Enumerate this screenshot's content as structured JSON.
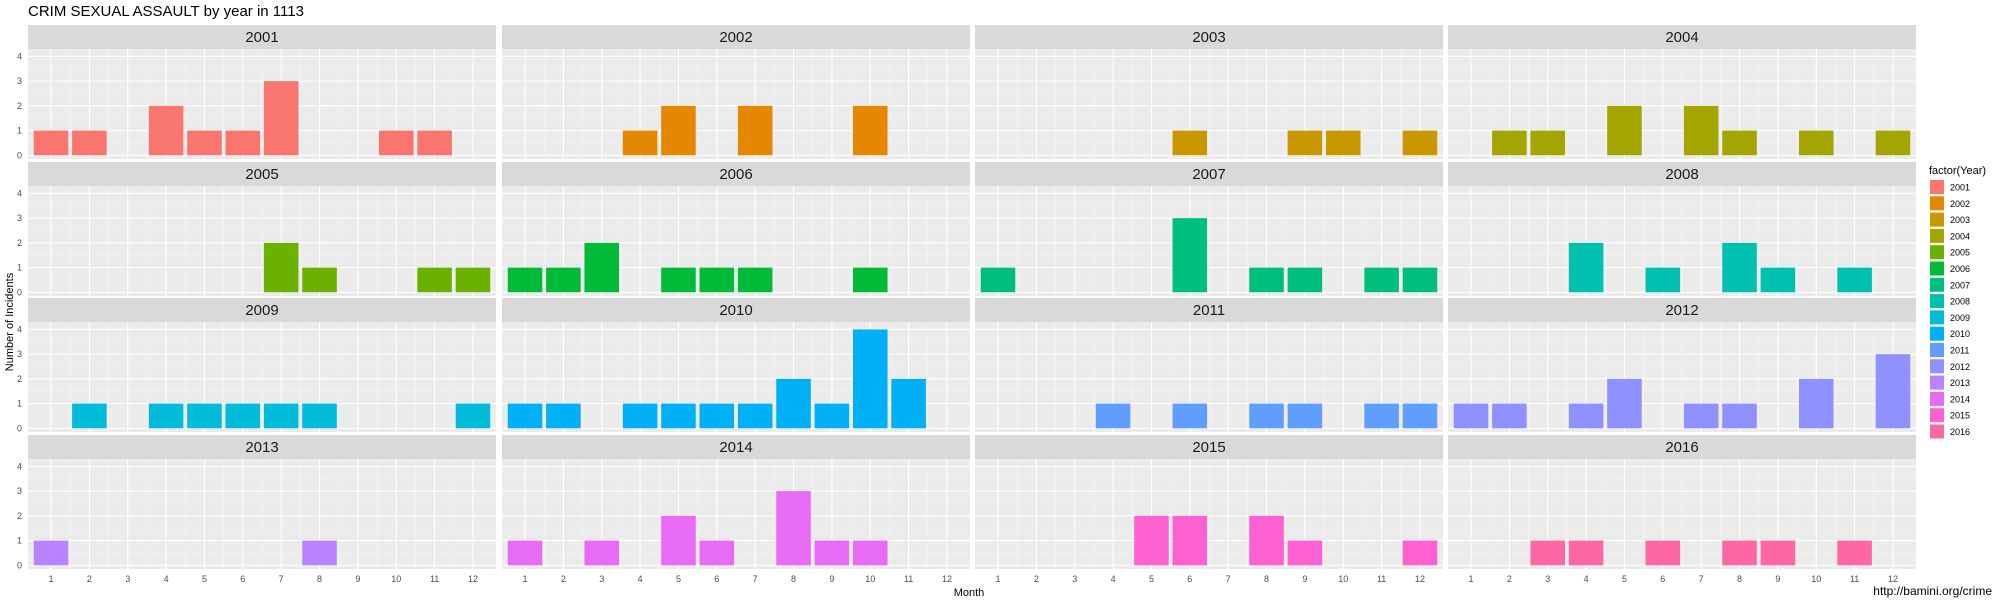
{
  "chart_data": {
    "type": "bar",
    "title": "CRIM SEXUAL ASSAULT by year in 1113",
    "xlabel": "Month",
    "ylabel": "Number of Incidents",
    "x_ticks": [
      "1",
      "2",
      "3",
      "4",
      "5",
      "6",
      "7",
      "8",
      "9",
      "10",
      "11",
      "12"
    ],
    "y_ticks": [
      "0",
      "1",
      "2",
      "3",
      "4"
    ],
    "ylim": [
      0,
      4.3
    ],
    "grid": true,
    "facet": "wrap by year, 4 columns",
    "legend": {
      "title": "factor(Year)",
      "position": "right",
      "entries": [
        "2001",
        "2002",
        "2003",
        "2004",
        "2005",
        "2006",
        "2007",
        "2008",
        "2009",
        "2010",
        "2011",
        "2012",
        "2013",
        "2014",
        "2015",
        "2016"
      ],
      "colors": [
        "#F8766D",
        "#E58700",
        "#C99800",
        "#A3A500",
        "#6BB100",
        "#00BA38",
        "#00BF7D",
        "#00C0AF",
        "#00BCD8",
        "#00B0F6",
        "#619CFF",
        "#8F91FF",
        "#B983FF",
        "#E76BF3",
        "#FD61D1",
        "#FF67A4"
      ]
    },
    "panels": [
      {
        "label": "2001",
        "values": [
          1,
          1,
          0,
          2,
          1,
          1,
          3,
          0,
          0,
          1,
          1,
          0
        ]
      },
      {
        "label": "2002",
        "values": [
          0,
          0,
          0,
          1,
          2,
          0,
          2,
          0,
          0,
          2,
          0,
          0
        ]
      },
      {
        "label": "2003",
        "values": [
          0,
          0,
          0,
          0,
          0,
          1,
          0,
          0,
          1,
          1,
          0,
          1
        ]
      },
      {
        "label": "2004",
        "values": [
          0,
          1,
          1,
          0,
          2,
          0,
          2,
          1,
          0,
          1,
          0,
          1
        ]
      },
      {
        "label": "2005",
        "values": [
          0,
          0,
          0,
          0,
          0,
          0,
          2,
          1,
          0,
          0,
          1,
          1
        ]
      },
      {
        "label": "2006",
        "values": [
          1,
          1,
          2,
          0,
          1,
          1,
          1,
          0,
          0,
          1,
          0,
          0
        ]
      },
      {
        "label": "2007",
        "values": [
          1,
          0,
          0,
          0,
          0,
          3,
          0,
          1,
          1,
          0,
          1,
          1
        ]
      },
      {
        "label": "2008",
        "values": [
          0,
          0,
          0,
          2,
          0,
          1,
          0,
          2,
          1,
          0,
          1,
          0
        ]
      },
      {
        "label": "2009",
        "values": [
          0,
          1,
          0,
          1,
          1,
          1,
          1,
          1,
          0,
          0,
          0,
          1
        ]
      },
      {
        "label": "2010",
        "values": [
          1,
          1,
          0,
          1,
          1,
          1,
          1,
          2,
          1,
          4,
          2,
          0
        ]
      },
      {
        "label": "2011",
        "values": [
          0,
          0,
          0,
          1,
          0,
          1,
          0,
          1,
          1,
          0,
          1,
          1
        ]
      },
      {
        "label": "2012",
        "values": [
          1,
          1,
          0,
          1,
          2,
          0,
          1,
          1,
          0,
          2,
          0,
          3
        ]
      },
      {
        "label": "2013",
        "values": [
          1,
          0,
          0,
          0,
          0,
          0,
          0,
          1,
          0,
          0,
          0,
          0
        ]
      },
      {
        "label": "2014",
        "values": [
          1,
          0,
          1,
          0,
          2,
          1,
          0,
          3,
          1,
          1,
          0,
          0
        ]
      },
      {
        "label": "2015",
        "values": [
          0,
          0,
          0,
          0,
          2,
          2,
          0,
          2,
          1,
          0,
          0,
          1
        ]
      },
      {
        "label": "2016",
        "values": [
          0,
          0,
          1,
          1,
          0,
          1,
          0,
          1,
          1,
          0,
          1,
          0
        ]
      }
    ],
    "caption": "http://bamini.org/crime"
  }
}
